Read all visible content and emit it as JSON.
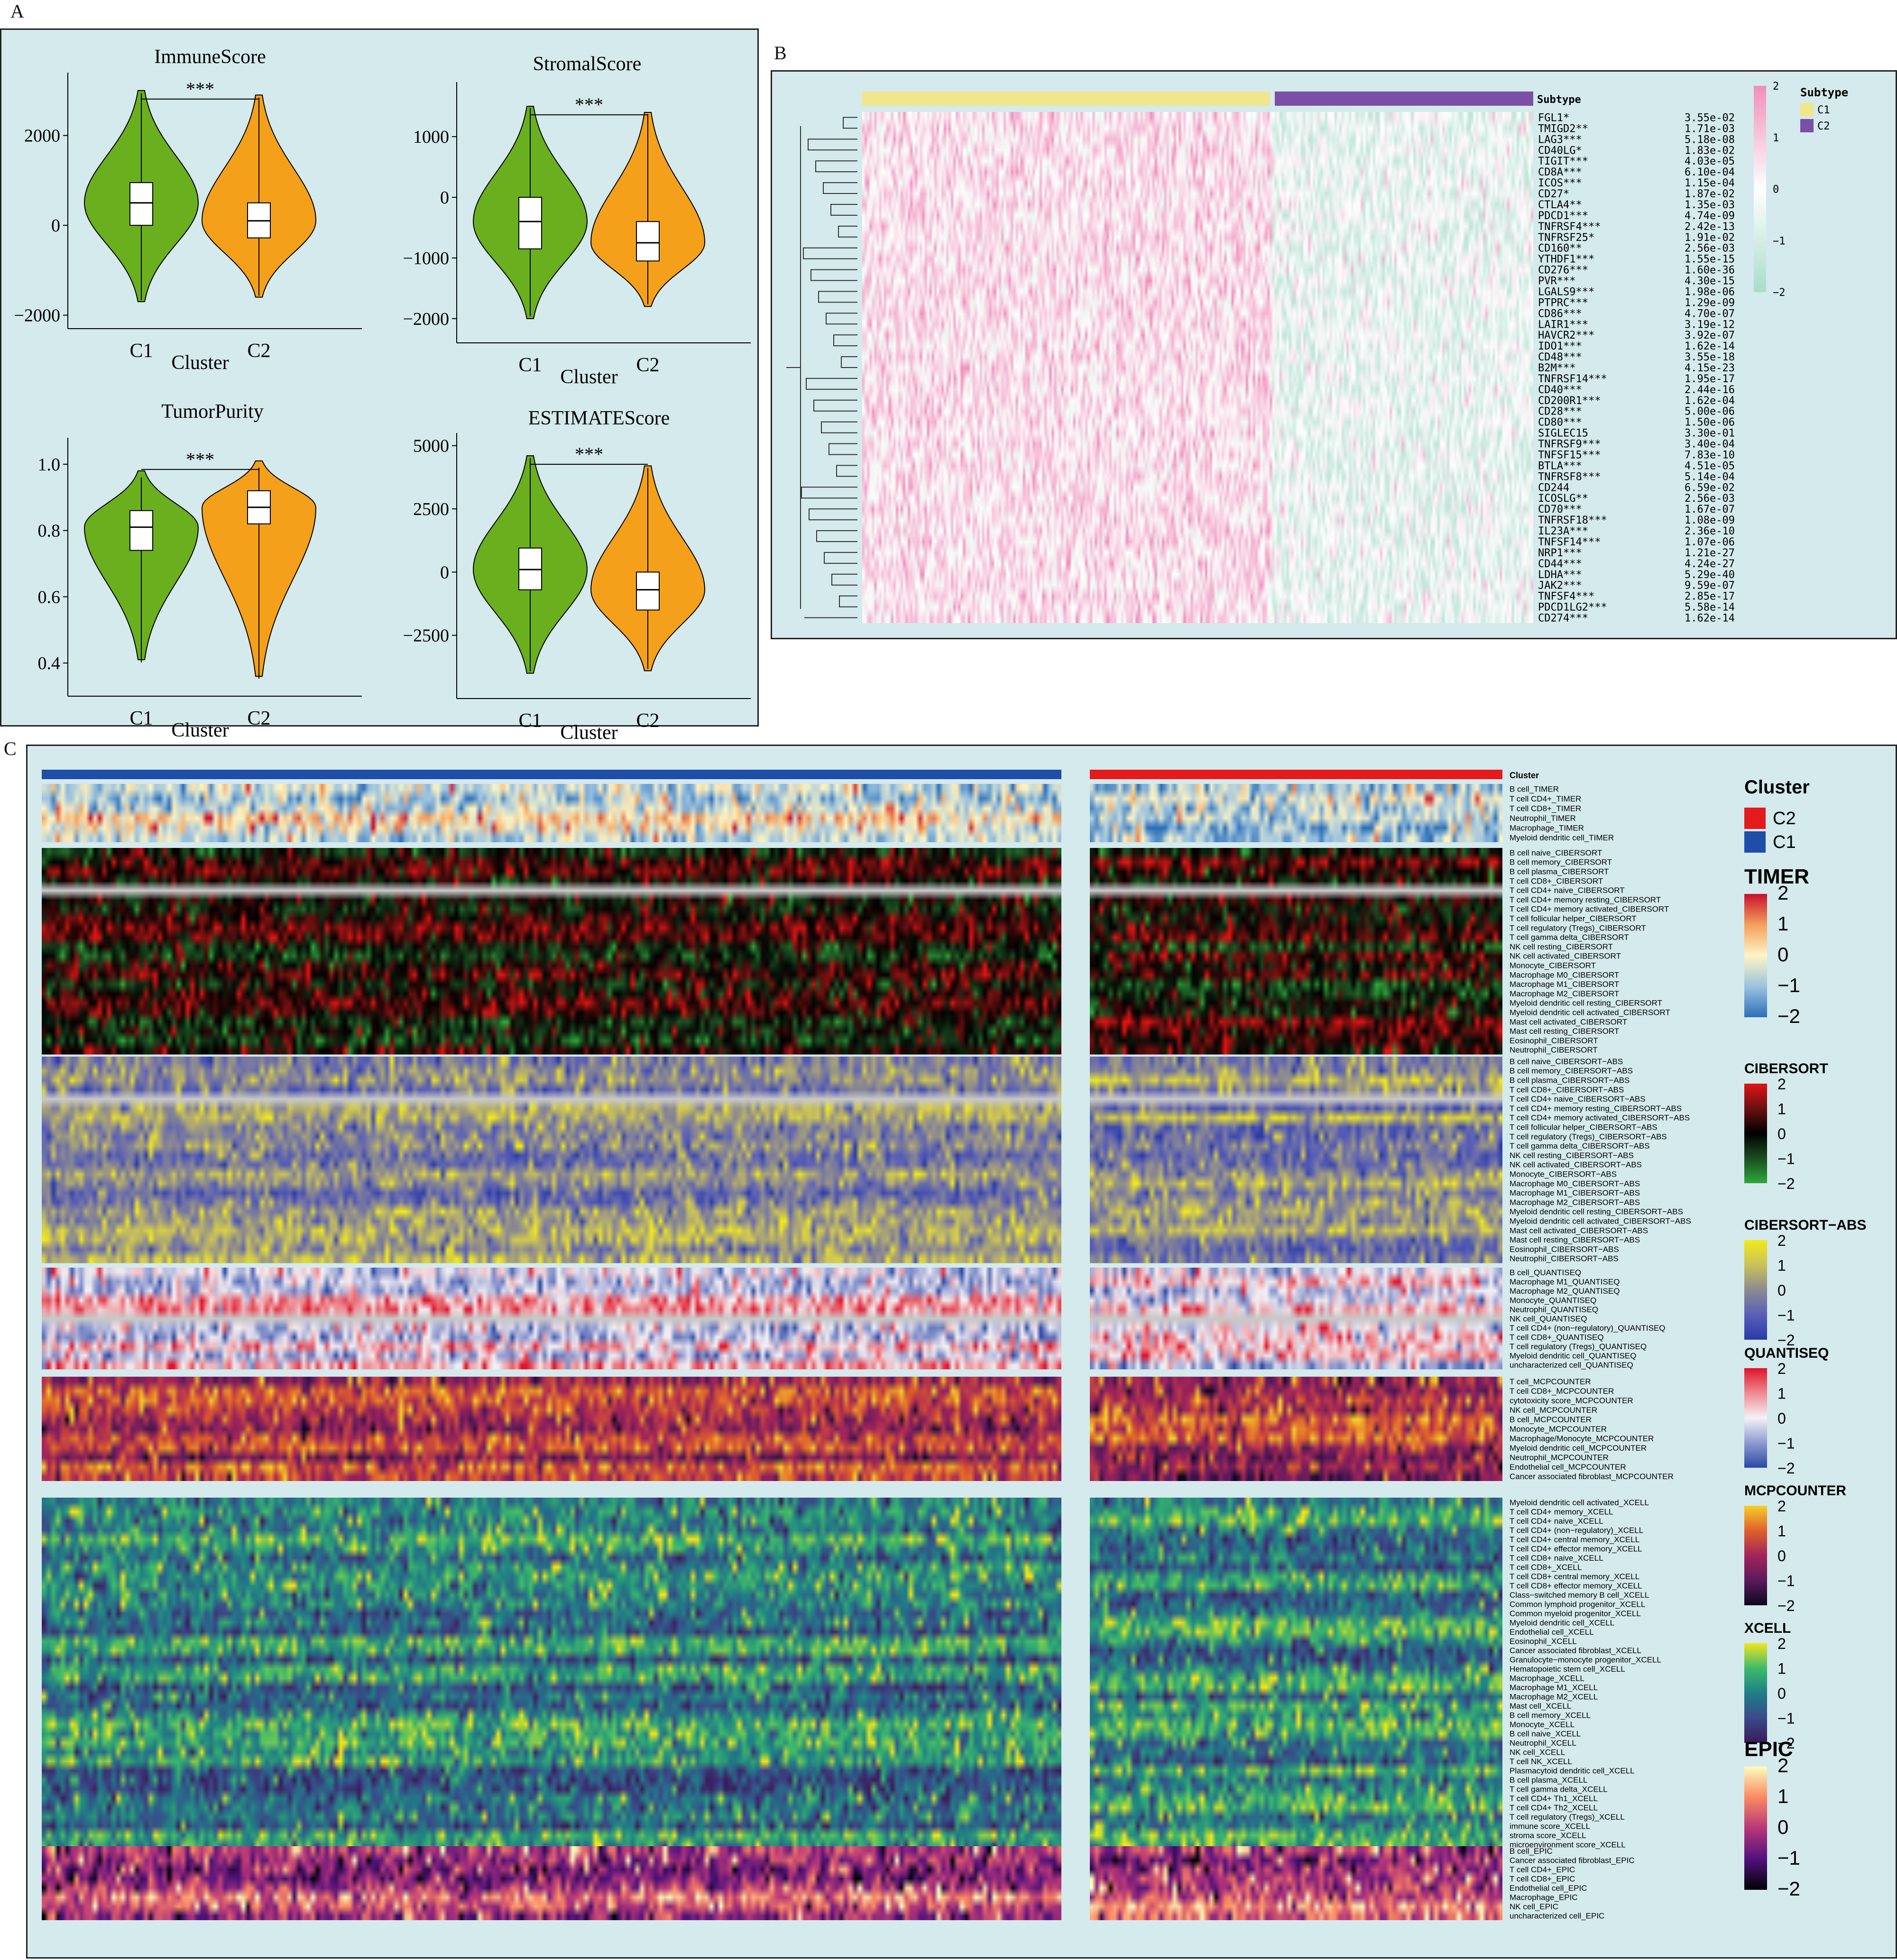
{
  "panels": {
    "a": "A",
    "b": "B",
    "c": "C"
  },
  "chart_data": [
    {
      "type": "violin",
      "title": "ImmuneScore",
      "xlabel": "Cluster",
      "categories": [
        "C1",
        "C2"
      ],
      "ylim": [
        -2300,
        3400
      ],
      "yticks": [
        "2000",
        "0",
        "−2000"
      ],
      "ytick_values": [
        2000,
        0,
        -2000
      ],
      "median": [
        500,
        100
      ],
      "q1": [
        0,
        -280
      ],
      "q3": [
        950,
        500
      ],
      "range": [
        [
          -1700,
          3000
        ],
        [
          -1600,
          2900
        ]
      ],
      "significance": "***",
      "colors": [
        "#6aaf1e",
        "#f5a01a"
      ]
    },
    {
      "type": "violin",
      "title": "StromalScore",
      "xlabel": "Cluster",
      "categories": [
        "C1",
        "C2"
      ],
      "ylim": [
        -2400,
        1900
      ],
      "yticks": [
        "1000",
        "0",
        "−1000",
        "−2000"
      ],
      "ytick_values": [
        1000,
        0,
        -1000,
        -2000
      ],
      "median": [
        -400,
        -750
      ],
      "q1": [
        -850,
        -1050
      ],
      "q3": [
        0,
        -400
      ],
      "range": [
        [
          -2000,
          1500
        ],
        [
          -1800,
          1400
        ]
      ],
      "significance": "***",
      "colors": [
        "#6aaf1e",
        "#f5a01a"
      ]
    },
    {
      "type": "violin",
      "title": "TumorPurity",
      "xlabel": "Cluster",
      "categories": [
        "C1",
        "C2"
      ],
      "ylim": [
        0.3,
        1.08
      ],
      "yticks": [
        "1.0",
        "0.8",
        "0.6",
        "0.4"
      ],
      "ytick_values": [
        1.0,
        0.8,
        0.6,
        0.4
      ],
      "median": [
        0.81,
        0.87
      ],
      "q1": [
        0.74,
        0.82
      ],
      "q3": [
        0.86,
        0.92
      ],
      "range": [
        [
          0.41,
          0.98
        ],
        [
          0.36,
          1.01
        ]
      ],
      "significance": "***",
      "colors": [
        "#6aaf1e",
        "#f5a01a"
      ]
    },
    {
      "type": "violin",
      "title": "ESTIMATEScore",
      "xlabel": "Cluster",
      "categories": [
        "C1",
        "C2"
      ],
      "ylim": [
        -5000,
        5500
      ],
      "yticks": [
        "5000",
        "2500",
        "0",
        "−2500"
      ],
      "ytick_values": [
        5000,
        2500,
        0,
        -2500
      ],
      "median": [
        100,
        -700
      ],
      "q1": [
        -700,
        -1500
      ],
      "q3": [
        950,
        0
      ],
      "range": [
        [
          -4000,
          4600
        ],
        [
          -3900,
          4200
        ]
      ],
      "significance": "***",
      "colors": [
        "#6aaf1e",
        "#f5a01a"
      ]
    },
    {
      "type": "heatmap",
      "annotation_label": "Subtype",
      "legend_title": "Subtype",
      "groups": [
        {
          "name": "C1",
          "color": "#f0e68c"
        },
        {
          "name": "C2",
          "color": "#7b4fa5"
        }
      ],
      "color_scale": {
        "ticks": [
          "2",
          "1",
          "0",
          "−1",
          "−2"
        ],
        "high": "#ef8fba",
        "mid": "#ffffff",
        "low": "#a9dccc"
      },
      "rows": [
        {
          "gene": "FGL1*",
          "p": "3.55e-02"
        },
        {
          "gene": "TMIGD2**",
          "p": "1.71e-03"
        },
        {
          "gene": "LAG3***",
          "p": "5.18e-08"
        },
        {
          "gene": "CD40LG*",
          "p": "1.83e-02"
        },
        {
          "gene": "TIGIT***",
          "p": "4.03e-05"
        },
        {
          "gene": "CD8A***",
          "p": "6.10e-04"
        },
        {
          "gene": "ICOS***",
          "p": "1.15e-04"
        },
        {
          "gene": "CD27*",
          "p": "1.87e-02"
        },
        {
          "gene": "CTLA4**",
          "p": "1.35e-03"
        },
        {
          "gene": "PDCD1***",
          "p": "4.74e-09"
        },
        {
          "gene": "TNFRSF4***",
          "p": "2.42e-13"
        },
        {
          "gene": "TNFRSF25*",
          "p": "1.91e-02"
        },
        {
          "gene": "CD160**",
          "p": "2.56e-03"
        },
        {
          "gene": "YTHDF1***",
          "p": "1.55e-15"
        },
        {
          "gene": "CD276***",
          "p": "1.60e-36"
        },
        {
          "gene": "PVR***",
          "p": "4.30e-15"
        },
        {
          "gene": "LGALS9***",
          "p": "1.98e-06"
        },
        {
          "gene": "PTPRC***",
          "p": "1.29e-09"
        },
        {
          "gene": "CD86***",
          "p": "4.70e-07"
        },
        {
          "gene": "LAIR1***",
          "p": "3.19e-12"
        },
        {
          "gene": "HAVCR2***",
          "p": "3.92e-07"
        },
        {
          "gene": "IDO1***",
          "p": "1.62e-14"
        },
        {
          "gene": "CD48***",
          "p": "3.55e-18"
        },
        {
          "gene": "B2M***",
          "p": "4.15e-23"
        },
        {
          "gene": "TNFRSF14***",
          "p": "1.95e-17"
        },
        {
          "gene": "CD40***",
          "p": "2.44e-16"
        },
        {
          "gene": "CD200R1***",
          "p": "1.62e-04"
        },
        {
          "gene": "CD28***",
          "p": "5.00e-06"
        },
        {
          "gene": "CD80***",
          "p": "1.50e-06"
        },
        {
          "gene": "SIGLEC15",
          "p": "3.30e-01"
        },
        {
          "gene": "TNFRSF9***",
          "p": "3.40e-04"
        },
        {
          "gene": "TNFSF15***",
          "p": "7.83e-10"
        },
        {
          "gene": "BTLA***",
          "p": "4.51e-05"
        },
        {
          "gene": "TNFRSF8***",
          "p": "5.14e-04"
        },
        {
          "gene": "CD244",
          "p": "6.59e-02"
        },
        {
          "gene": "ICOSLG**",
          "p": "2.56e-03"
        },
        {
          "gene": "CD70***",
          "p": "1.67e-07"
        },
        {
          "gene": "TNFRSF18***",
          "p": "1.08e-09"
        },
        {
          "gene": "IL23A***",
          "p": "2.36e-10"
        },
        {
          "gene": "TNFSF14***",
          "p": "1.07e-06"
        },
        {
          "gene": "NRP1***",
          "p": "1.21e-27"
        },
        {
          "gene": "CD44***",
          "p": "4.24e-27"
        },
        {
          "gene": "LDHA***",
          "p": "5.29e-40"
        },
        {
          "gene": "JAK2***",
          "p": "9.59e-07"
        },
        {
          "gene": "TNFSF4***",
          "p": "2.85e-17"
        },
        {
          "gene": "PDCD1LG2***",
          "p": "5.58e-14"
        },
        {
          "gene": "CD274***",
          "p": "1.62e-14"
        }
      ]
    },
    {
      "type": "heatmap",
      "annotation_label": "Cluster",
      "legend_title": "Cluster",
      "groups": [
        {
          "name": "C2",
          "color": "#e41a1c"
        },
        {
          "name": "C1",
          "color": "#1f4ea8"
        }
      ],
      "blocks": [
        {
          "name": "TIMER",
          "palette": [
            "#2c6fb7",
            "#9cc3e0",
            "#fdf5c4",
            "#f4a05a",
            "#c8102e"
          ],
          "ticks": [
            "2",
            "1",
            "0",
            "−1",
            "−2"
          ],
          "rows": [
            "B cell_TIMER",
            "T cell CD4+_TIMER",
            "T cell CD8+_TIMER",
            "Neutrophil_TIMER",
            "Macrophage_TIMER",
            "Myeloid dendritic cell_TIMER"
          ]
        },
        {
          "name": "CIBERSORT",
          "palette": [
            "#2fa83a",
            "#1a4d21",
            "#000000",
            "#6a1010",
            "#e01414"
          ],
          "ticks": [
            "2",
            "1",
            "0",
            "−1",
            "−2"
          ],
          "rows": [
            "B cell naive_CIBERSORT",
            "B cell memory_CIBERSORT",
            "B cell plasma_CIBERSORT",
            "T cell CD8+_CIBERSORT",
            "T cell CD4+ naive_CIBERSORT",
            "T cell CD4+ memory resting_CIBERSORT",
            "T cell CD4+ memory activated_CIBERSORT",
            "T cell follicular helper_CIBERSORT",
            "T cell regulatory (Tregs)_CIBERSORT",
            "T cell gamma delta_CIBERSORT",
            "NK cell resting_CIBERSORT",
            "NK cell activated_CIBERSORT",
            "Monocyte_CIBERSORT",
            "Macrophage M0_CIBERSORT",
            "Macrophage M1_CIBERSORT",
            "Macrophage M2_CIBERSORT",
            "Myeloid dendritic cell resting_CIBERSORT",
            "Myeloid dendritic cell activated_CIBERSORT",
            "Mast cell activated_CIBERSORT",
            "Mast cell resting_CIBERSORT",
            "Eosinophil_CIBERSORT",
            "Neutrophil_CIBERSORT"
          ]
        },
        {
          "name": "CIBERSORT−ABS",
          "palette": [
            "#2a3aa6",
            "#5a5fb8",
            "#8c8a90",
            "#c9c25a",
            "#f2ea1a"
          ],
          "ticks": [
            "2",
            "1",
            "0",
            "−1",
            "−2"
          ],
          "rows": [
            "B cell naive_CIBERSORT−ABS",
            "B cell memory_CIBERSORT−ABS",
            "B cell plasma_CIBERSORT−ABS",
            "T cell CD8+_CIBERSORT−ABS",
            "T cell CD4+ naive_CIBERSORT−ABS",
            "T cell CD4+ memory resting_CIBERSORT−ABS",
            "T cell CD4+ memory activated_CIBERSORT−ABS",
            "T cell follicular helper_CIBERSORT−ABS",
            "T cell regulatory (Tregs)_CIBERSORT−ABS",
            "T cell gamma delta_CIBERSORT−ABS",
            "NK cell resting_CIBERSORT−ABS",
            "NK cell activated_CIBERSORT−ABS",
            "Monocyte_CIBERSORT−ABS",
            "Macrophage M0_CIBERSORT−ABS",
            "Macrophage M1_CIBERSORT−ABS",
            "Macrophage M2_CIBERSORT−ABS",
            "Myeloid dendritic cell resting_CIBERSORT−ABS",
            "Myeloid dendritic cell activated_CIBERSORT−ABS",
            "Mast cell activated_CIBERSORT−ABS",
            "Mast cell resting_CIBERSORT−ABS",
            "Eosinophil_CIBERSORT−ABS",
            "Neutrophil_CIBERSORT−ABS"
          ]
        },
        {
          "name": "QUANTISEQ",
          "palette": [
            "#2a4aa6",
            "#8f9ad0",
            "#f4f2f6",
            "#ee8a90",
            "#e0142a"
          ],
          "ticks": [
            "2",
            "1",
            "0",
            "−1",
            "−2"
          ],
          "rows": [
            "B cell_QUANTISEQ",
            "Macrophage M1_QUANTISEQ",
            "Macrophage M2_QUANTISEQ",
            "Monocyte_QUANTISEQ",
            "Neutrophil_QUANTISEQ",
            "NK cell_QUANTISEQ",
            "T cell CD4+ (non−regulatory)_QUANTISEQ",
            "T cell CD8+_QUANTISEQ",
            "T cell regulatory (Tregs)_QUANTISEQ",
            "Myeloid dendritic cell_QUANTISEQ",
            "uncharacterized cell_QUANTISEQ"
          ]
        },
        {
          "name": "MCPCOUNTER",
          "palette": [
            "#0c0620",
            "#5a1a5e",
            "#a3245a",
            "#e0602a",
            "#f6d02a"
          ],
          "ticks": [
            "2",
            "1",
            "0",
            "−1",
            "−2"
          ],
          "rows": [
            "T cell_MCPCOUNTER",
            "T cell CD8+_MCPCOUNTER",
            "cytotoxicity score_MCPCOUNTER",
            "NK cell_MCPCOUNTER",
            "B cell_MCPCOUNTER",
            "Monocyte_MCPCOUNTER",
            "Macrophage/Monocyte_MCPCOUNTER",
            "Myeloid dendritic cell_MCPCOUNTER",
            "Neutrophil_MCPCOUNTER",
            "Endothelial cell_MCPCOUNTER",
            "Cancer associated fibroblast_MCPCOUNTER"
          ]
        },
        {
          "name": "XCELL",
          "palette": [
            "#3a1a5a",
            "#3a4a8a",
            "#1f7f86",
            "#3dbb6a",
            "#f1e51d"
          ],
          "ticks": [
            "2",
            "1",
            "0",
            "−1",
            "−2"
          ],
          "rows": [
            "Myeloid dendritic cell activated_XCELL",
            "T cell CD4+ memory_XCELL",
            "T cell CD4+ naive_XCELL",
            "T cell CD4+ (non−regulatory)_XCELL",
            "T cell CD4+ central memory_XCELL",
            "T cell CD4+ effector memory_XCELL",
            "T cell CD8+ naive_XCELL",
            "T cell CD8+_XCELL",
            "T cell CD8+ central memory_XCELL",
            "T cell CD8+ effector memory_XCELL",
            "Class−switched memory B cell_XCELL",
            "Common lymphoid progenitor_XCELL",
            "Common myeloid progenitor_XCELL",
            "Myeloid dendritic cell_XCELL",
            "Endothelial cell_XCELL",
            "Eosinophil_XCELL",
            "Cancer associated fibroblast_XCELL",
            "Granulocyte−monocyte progenitor_XCELL",
            "Hematopoietic stem cell_XCELL",
            "Macrophage_XCELL",
            "Macrophage M1_XCELL",
            "Macrophage M2_XCELL",
            "Mast cell_XCELL",
            "B cell memory_XCELL",
            "Monocyte_XCELL",
            "B cell naive_XCELL",
            "Neutrophil_XCELL",
            "NK cell_XCELL",
            "T cell NK_XCELL",
            "Plasmacytoid dendritic cell_XCELL",
            "B cell plasma_XCELL",
            "T cell gamma delta_XCELL",
            "T cell CD4+ Th1_XCELL",
            "T cell CD4+ Th2_XCELL",
            "T cell regulatory (Tregs)_XCELL",
            "immune score_XCELL",
            "stroma score_XCELL",
            "microenvironment score_XCELL"
          ]
        },
        {
          "name": "EPIC",
          "palette": [
            "#000004",
            "#51127c",
            "#b73779",
            "#fc8961",
            "#fcfdbf"
          ],
          "ticks": [
            "2",
            "1",
            "0",
            "−1",
            "−2"
          ],
          "rows": [
            "B cell_EPIC",
            "Cancer associated fibroblast_EPIC",
            "T cell CD4+_EPIC",
            "T cell CD8+_EPIC",
            "Endothelial cell_EPIC",
            "Macrophage_EPIC",
            "NK cell_EPIC",
            "uncharacterized cell_EPIC"
          ]
        }
      ]
    }
  ]
}
